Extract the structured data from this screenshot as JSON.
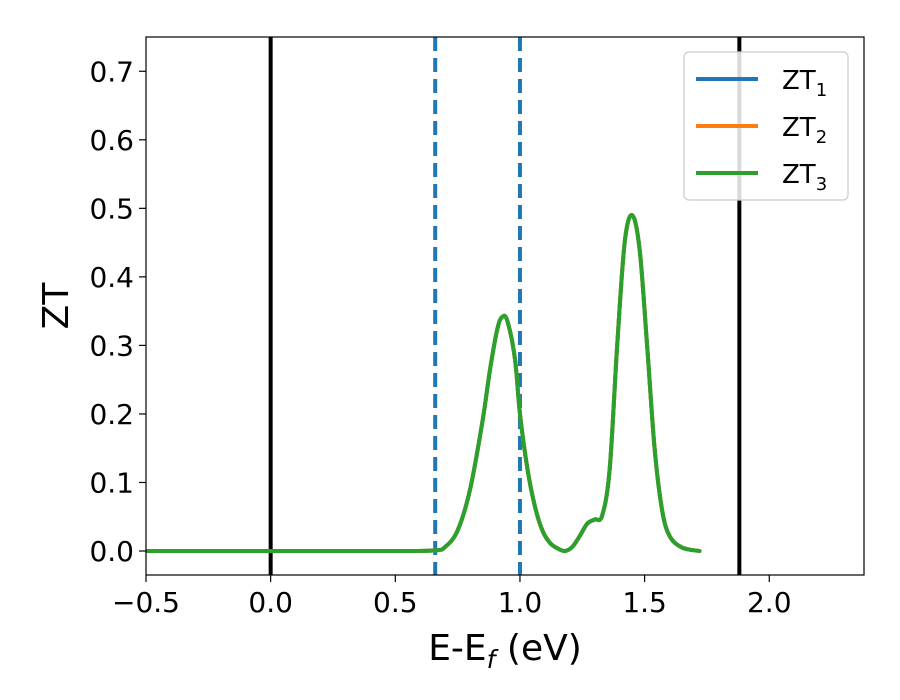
{
  "chart_data": {
    "type": "line",
    "xlabel_main": "E-E",
    "xlabel_sub": "f",
    "xlabel_unit": " (eV)",
    "ylabel": "ZT",
    "xlim": [
      -0.5,
      2.38
    ],
    "ylim": [
      -0.035,
      0.75
    ],
    "x_ticks": [
      -0.5,
      0.0,
      0.5,
      1.0,
      1.5,
      2.0
    ],
    "x_tick_labels": [
      "−0.5",
      "0.0",
      "0.5",
      "1.0",
      "1.5",
      "2.0"
    ],
    "y_ticks": [
      0.0,
      0.1,
      0.2,
      0.3,
      0.4,
      0.5,
      0.6,
      0.7
    ],
    "y_tick_labels": [
      "0.0",
      "0.1",
      "0.2",
      "0.3",
      "0.4",
      "0.5",
      "0.6",
      "0.7"
    ],
    "grid": false,
    "legend_position": "top-right",
    "vlines_solid": [
      0.0,
      1.88
    ],
    "vlines_dashed": [
      0.66,
      1.0
    ],
    "vline_solid_color": "#000000",
    "vline_dashed_color": "#1f77b4",
    "x": [
      -0.5,
      0.0,
      0.5,
      0.66,
      0.7,
      0.75,
      0.8,
      0.85,
      0.88,
      0.91,
      0.93,
      0.95,
      0.98,
      1.0,
      1.03,
      1.06,
      1.09,
      1.12,
      1.15,
      1.18,
      1.21,
      1.24,
      1.27,
      1.3,
      1.33,
      1.36,
      1.39,
      1.42,
      1.45,
      1.48,
      1.51,
      1.54,
      1.57,
      1.6,
      1.65,
      1.72
    ],
    "series": [
      {
        "name_main": "ZT",
        "name_sub": "1",
        "color": "#1f77b4",
        "values": [
          0.0,
          0.0,
          0.0,
          0.001,
          0.006,
          0.03,
          0.09,
          0.19,
          0.265,
          0.325,
          0.342,
          0.335,
          0.28,
          0.2,
          0.12,
          0.065,
          0.03,
          0.012,
          0.004,
          0.0,
          0.006,
          0.022,
          0.04,
          0.046,
          0.052,
          0.12,
          0.3,
          0.45,
          0.49,
          0.44,
          0.3,
          0.15,
          0.06,
          0.022,
          0.005,
          0.0
        ]
      },
      {
        "name_main": "ZT",
        "name_sub": "2",
        "color": "#ff7f0e",
        "values": [
          0.0,
          0.0,
          0.0,
          0.001,
          0.006,
          0.03,
          0.09,
          0.19,
          0.265,
          0.325,
          0.342,
          0.335,
          0.28,
          0.2,
          0.12,
          0.065,
          0.03,
          0.012,
          0.004,
          0.0,
          0.006,
          0.022,
          0.04,
          0.046,
          0.052,
          0.12,
          0.3,
          0.45,
          0.49,
          0.44,
          0.3,
          0.15,
          0.06,
          0.022,
          0.005,
          0.0
        ]
      },
      {
        "name_main": "ZT",
        "name_sub": "3",
        "color": "#2ca02c",
        "values": [
          0.0,
          0.0,
          0.0,
          0.001,
          0.006,
          0.03,
          0.09,
          0.19,
          0.265,
          0.325,
          0.342,
          0.335,
          0.28,
          0.2,
          0.12,
          0.065,
          0.03,
          0.012,
          0.004,
          0.0,
          0.006,
          0.022,
          0.04,
          0.046,
          0.052,
          0.12,
          0.3,
          0.45,
          0.49,
          0.44,
          0.3,
          0.15,
          0.06,
          0.022,
          0.005,
          0.0
        ]
      }
    ]
  }
}
